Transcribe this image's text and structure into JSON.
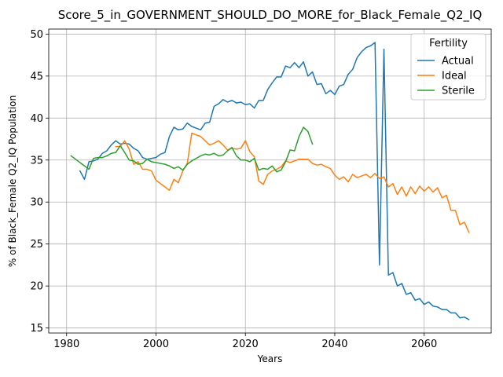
{
  "chart_data": {
    "type": "line",
    "title": "Score_5_in_GOVERNMENT_SHOULD_DO_MORE_for_Black_Female_Q2_IQ",
    "xlabel": "Years",
    "ylabel": "% of Black_Female Q2_IQ Population",
    "xlim": [
      1976,
      2075
    ],
    "ylim": [
      14.4,
      50.6
    ],
    "xticks": [
      1980,
      2000,
      2020,
      2040,
      2060
    ],
    "yticks": [
      15,
      20,
      25,
      30,
      35,
      40,
      45,
      50
    ],
    "grid": true,
    "legend": {
      "title": "Fertility",
      "placement": "top-right"
    },
    "series": [
      {
        "name": "Actual",
        "color": "#1f77b4",
        "points": [
          [
            1983,
            33.7
          ],
          [
            1984,
            32.7
          ],
          [
            1985,
            34.8
          ],
          [
            1986,
            34.9
          ],
          [
            1987,
            35.1
          ],
          [
            1988,
            35.8
          ],
          [
            1989,
            36.1
          ],
          [
            1990,
            36.8
          ],
          [
            1991,
            37.3
          ],
          [
            1992,
            36.9
          ],
          [
            1993,
            37.0
          ],
          [
            1994,
            36.9
          ],
          [
            1995,
            36.4
          ],
          [
            1996,
            36.1
          ],
          [
            1997,
            35.3
          ],
          [
            1998,
            35.1
          ],
          [
            1999,
            35.2
          ],
          [
            2000,
            35.3
          ],
          [
            2001,
            35.7
          ],
          [
            2002,
            35.9
          ],
          [
            2003,
            37.8
          ],
          [
            2004,
            38.9
          ],
          [
            2005,
            38.6
          ],
          [
            2006,
            38.7
          ],
          [
            2007,
            39.4
          ],
          [
            2008,
            39.0
          ],
          [
            2009,
            38.8
          ],
          [
            2010,
            38.6
          ],
          [
            2011,
            39.4
          ],
          [
            2012,
            39.5
          ],
          [
            2013,
            41.4
          ],
          [
            2014,
            41.7
          ],
          [
            2015,
            42.2
          ],
          [
            2016,
            41.9
          ],
          [
            2017,
            42.1
          ],
          [
            2018,
            41.8
          ],
          [
            2019,
            41.9
          ],
          [
            2020,
            41.6
          ],
          [
            2021,
            41.7
          ],
          [
            2022,
            41.2
          ],
          [
            2023,
            42.1
          ],
          [
            2024,
            42.1
          ],
          [
            2025,
            43.4
          ],
          [
            2026,
            44.2
          ],
          [
            2027,
            44.9
          ],
          [
            2028,
            44.9
          ],
          [
            2029,
            46.2
          ],
          [
            2030,
            46.0
          ],
          [
            2031,
            46.6
          ],
          [
            2032,
            46.0
          ],
          [
            2033,
            46.7
          ],
          [
            2034,
            45.0
          ],
          [
            2035,
            45.5
          ],
          [
            2036,
            44.0
          ],
          [
            2037,
            44.1
          ],
          [
            2038,
            42.9
          ],
          [
            2039,
            43.3
          ],
          [
            2040,
            42.8
          ],
          [
            2041,
            43.8
          ],
          [
            2042,
            44.0
          ],
          [
            2043,
            45.2
          ],
          [
            2044,
            45.8
          ],
          [
            2045,
            47.2
          ],
          [
            2046,
            47.9
          ],
          [
            2047,
            48.4
          ],
          [
            2048,
            48.6
          ],
          [
            2049,
            49.0
          ],
          [
            2050,
            22.5
          ],
          [
            2051,
            48.2
          ],
          [
            2052,
            21.3
          ],
          [
            2053,
            21.6
          ],
          [
            2054,
            20.0
          ],
          [
            2055,
            20.3
          ],
          [
            2056,
            19.0
          ],
          [
            2057,
            19.2
          ],
          [
            2058,
            18.3
          ],
          [
            2059,
            18.5
          ],
          [
            2060,
            17.8
          ],
          [
            2061,
            18.1
          ],
          [
            2062,
            17.6
          ],
          [
            2063,
            17.5
          ],
          [
            2064,
            17.2
          ],
          [
            2065,
            17.2
          ],
          [
            2066,
            16.8
          ],
          [
            2067,
            16.8
          ],
          [
            2068,
            16.2
          ],
          [
            2069,
            16.3
          ],
          [
            2070,
            16.0
          ]
        ]
      },
      {
        "name": "Ideal",
        "color": "#ff7f0e",
        "points": [
          [
            1991,
            36.6
          ],
          [
            1992,
            36.6
          ],
          [
            1993,
            37.3
          ],
          [
            1994,
            36.3
          ],
          [
            1995,
            34.5
          ],
          [
            1996,
            34.8
          ],
          [
            1997,
            33.9
          ],
          [
            1998,
            33.9
          ],
          [
            1999,
            33.7
          ],
          [
            2000,
            32.6
          ],
          [
            2001,
            32.2
          ],
          [
            2002,
            31.8
          ],
          [
            2003,
            31.4
          ],
          [
            2004,
            32.7
          ],
          [
            2005,
            32.3
          ],
          [
            2006,
            33.7
          ],
          [
            2007,
            34.6
          ],
          [
            2008,
            38.2
          ],
          [
            2009,
            38.0
          ],
          [
            2010,
            37.8
          ],
          [
            2011,
            37.3
          ],
          [
            2012,
            36.8
          ],
          [
            2013,
            37.0
          ],
          [
            2014,
            37.3
          ],
          [
            2015,
            36.8
          ],
          [
            2016,
            36.2
          ],
          [
            2017,
            36.4
          ],
          [
            2018,
            36.3
          ],
          [
            2019,
            36.4
          ],
          [
            2020,
            37.3
          ],
          [
            2021,
            36.0
          ],
          [
            2022,
            35.4
          ],
          [
            2023,
            32.5
          ],
          [
            2024,
            32.1
          ],
          [
            2025,
            33.3
          ],
          [
            2026,
            33.7
          ],
          [
            2027,
            33.9
          ],
          [
            2028,
            34.2
          ],
          [
            2029,
            34.9
          ],
          [
            2030,
            34.7
          ],
          [
            2031,
            34.9
          ],
          [
            2032,
            35.1
          ],
          [
            2033,
            35.1
          ],
          [
            2034,
            35.1
          ],
          [
            2035,
            34.6
          ],
          [
            2036,
            34.4
          ],
          [
            2037,
            34.5
          ],
          [
            2038,
            34.2
          ],
          [
            2039,
            34.0
          ],
          [
            2040,
            33.2
          ],
          [
            2041,
            32.7
          ],
          [
            2042,
            33.0
          ],
          [
            2043,
            32.4
          ],
          [
            2044,
            33.3
          ],
          [
            2045,
            32.9
          ],
          [
            2046,
            33.1
          ],
          [
            2047,
            33.3
          ],
          [
            2048,
            32.9
          ],
          [
            2049,
            33.4
          ],
          [
            2050,
            32.8
          ],
          [
            2051,
            33.0
          ],
          [
            2052,
            31.8
          ],
          [
            2053,
            32.2
          ],
          [
            2054,
            30.9
          ],
          [
            2055,
            31.8
          ],
          [
            2056,
            30.7
          ],
          [
            2057,
            31.8
          ],
          [
            2058,
            31.0
          ],
          [
            2059,
            31.9
          ],
          [
            2060,
            31.3
          ],
          [
            2061,
            31.8
          ],
          [
            2062,
            31.2
          ],
          [
            2063,
            31.7
          ],
          [
            2064,
            30.5
          ],
          [
            2065,
            30.8
          ],
          [
            2066,
            29.0
          ],
          [
            2067,
            29.0
          ],
          [
            2068,
            27.3
          ],
          [
            2069,
            27.6
          ],
          [
            2070,
            26.4
          ]
        ]
      },
      {
        "name": "Sterile",
        "color": "#2ca02c",
        "points": [
          [
            1981,
            35.5
          ],
          [
            1982,
            35.1
          ],
          [
            1983,
            34.7
          ],
          [
            1984,
            34.3
          ],
          [
            1985,
            33.9
          ],
          [
            1986,
            35.2
          ],
          [
            1987,
            35.3
          ],
          [
            1988,
            35.3
          ],
          [
            1989,
            35.5
          ],
          [
            1990,
            35.8
          ],
          [
            1991,
            35.9
          ],
          [
            1992,
            36.7
          ],
          [
            1993,
            35.9
          ],
          [
            1994,
            35.0
          ],
          [
            1995,
            34.9
          ],
          [
            1996,
            34.5
          ],
          [
            1997,
            34.6
          ],
          [
            1998,
            35.1
          ],
          [
            1999,
            34.8
          ],
          [
            2000,
            34.7
          ],
          [
            2001,
            34.6
          ],
          [
            2002,
            34.5
          ],
          [
            2003,
            34.3
          ],
          [
            2004,
            34.0
          ],
          [
            2005,
            34.2
          ],
          [
            2006,
            33.8
          ],
          [
            2007,
            34.5
          ],
          [
            2008,
            34.9
          ],
          [
            2009,
            35.2
          ],
          [
            2010,
            35.5
          ],
          [
            2011,
            35.7
          ],
          [
            2012,
            35.6
          ],
          [
            2013,
            35.8
          ],
          [
            2014,
            35.5
          ],
          [
            2015,
            35.6
          ],
          [
            2016,
            36.1
          ],
          [
            2017,
            36.5
          ],
          [
            2018,
            35.5
          ],
          [
            2019,
            35.0
          ],
          [
            2020,
            35.0
          ],
          [
            2021,
            34.8
          ],
          [
            2022,
            35.2
          ],
          [
            2023,
            33.8
          ],
          [
            2024,
            34.0
          ],
          [
            2025,
            33.9
          ],
          [
            2026,
            34.3
          ],
          [
            2027,
            33.6
          ],
          [
            2028,
            33.8
          ],
          [
            2029,
            34.8
          ],
          [
            2030,
            36.2
          ],
          [
            2031,
            36.1
          ],
          [
            2032,
            37.8
          ],
          [
            2033,
            38.9
          ],
          [
            2034,
            38.4
          ],
          [
            2035,
            36.9
          ]
        ]
      }
    ]
  }
}
